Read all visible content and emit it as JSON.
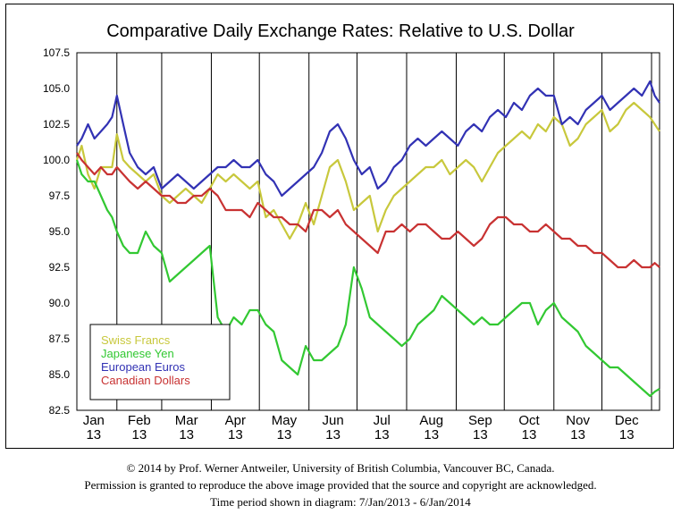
{
  "chart_data": {
    "type": "line",
    "title": "Comparative Daily Exchange Rates: Relative to U.S. Dollar",
    "xlabel": "",
    "ylabel": "",
    "ylim": [
      82.5,
      107.5
    ],
    "yticks": [
      "107.5",
      "105.0",
      "102.5",
      "100.0",
      "97.5",
      "95.0",
      "92.5",
      "90.0",
      "87.5",
      "85.0",
      "82.5"
    ],
    "months": [
      {
        "month": "Jan",
        "year": "13"
      },
      {
        "month": "Feb",
        "year": "13"
      },
      {
        "month": "Mar",
        "year": "13"
      },
      {
        "month": "Apr",
        "year": "13"
      },
      {
        "month": "May",
        "year": "13"
      },
      {
        "month": "Jun",
        "year": "13"
      },
      {
        "month": "Jul",
        "year": "13"
      },
      {
        "month": "Aug",
        "year": "13"
      },
      {
        "month": "Sep",
        "year": "13"
      },
      {
        "month": "Oct",
        "year": "13"
      },
      {
        "month": "Nov",
        "year": "13"
      },
      {
        "month": "Dec",
        "year": "13"
      }
    ],
    "x_unit": "day of year 2013",
    "xlim": [
      7,
      371
    ],
    "month_boundaries": [
      32,
      60,
      91,
      121,
      152,
      182,
      213,
      244,
      274,
      305,
      335,
      366
    ],
    "grid": true,
    "legend_position": "bottom-left",
    "series": [
      {
        "name": "Swiss Francs",
        "color": "#c8c83c",
        "x": [
          7,
          10,
          14,
          18,
          22,
          26,
          29,
          32,
          36,
          40,
          45,
          50,
          55,
          60,
          65,
          70,
          75,
          80,
          85,
          90,
          95,
          100,
          105,
          110,
          115,
          120,
          125,
          130,
          135,
          140,
          145,
          150,
          155,
          160,
          165,
          170,
          175,
          180,
          185,
          190,
          195,
          200,
          205,
          210,
          215,
          220,
          225,
          230,
          235,
          240,
          245,
          250,
          255,
          260,
          265,
          270,
          275,
          280,
          285,
          290,
          295,
          300,
          305,
          310,
          315,
          320,
          325,
          330,
          335,
          340,
          345,
          350,
          355,
          360,
          365,
          368,
          371
        ],
        "values": [
          100.0,
          101.0,
          99.0,
          98.0,
          99.5,
          99.5,
          99.5,
          101.8,
          100.0,
          99.5,
          99.0,
          98.5,
          99.0,
          97.5,
          97.0,
          97.5,
          98.0,
          97.5,
          97.0,
          98.0,
          99.0,
          98.5,
          99.0,
          98.5,
          98.0,
          98.5,
          96.0,
          96.5,
          95.5,
          94.5,
          95.5,
          97.0,
          95.5,
          97.5,
          99.5,
          100.0,
          98.5,
          96.5,
          97.0,
          97.5,
          95.0,
          96.5,
          97.5,
          98.0,
          98.5,
          99.0,
          99.5,
          99.5,
          100.0,
          99.0,
          99.5,
          100.0,
          99.5,
          98.5,
          99.5,
          100.5,
          101.0,
          101.5,
          102.0,
          101.5,
          102.5,
          102.0,
          103.0,
          102.5,
          101.0,
          101.5,
          102.5,
          103.0,
          103.5,
          102.0,
          102.5,
          103.5,
          104.0,
          103.5,
          103.0,
          102.5,
          102.0
        ]
      },
      {
        "name": "Japanese Yen",
        "color": "#32c832",
        "x": [
          7,
          10,
          14,
          18,
          22,
          26,
          29,
          32,
          36,
          40,
          45,
          50,
          55,
          60,
          65,
          70,
          75,
          80,
          85,
          90,
          95,
          100,
          105,
          110,
          115,
          120,
          125,
          130,
          135,
          140,
          145,
          150,
          155,
          160,
          165,
          170,
          175,
          180,
          185,
          190,
          195,
          200,
          205,
          210,
          215,
          220,
          225,
          230,
          235,
          240,
          245,
          250,
          255,
          260,
          265,
          270,
          275,
          280,
          285,
          290,
          295,
          300,
          305,
          310,
          315,
          320,
          325,
          330,
          335,
          340,
          345,
          350,
          355,
          360,
          365,
          368,
          371
        ],
        "values": [
          100.0,
          99.0,
          98.5,
          98.5,
          97.5,
          96.5,
          96.0,
          95.0,
          94.0,
          93.5,
          93.5,
          95.0,
          94.0,
          93.5,
          91.5,
          92.0,
          92.5,
          93.0,
          93.5,
          94.0,
          89.0,
          88.0,
          89.0,
          88.5,
          89.5,
          89.5,
          88.5,
          88.0,
          86.0,
          85.5,
          85.0,
          87.0,
          86.0,
          86.0,
          86.5,
          87.0,
          88.5,
          92.5,
          91.0,
          89.0,
          88.5,
          88.0,
          87.5,
          87.0,
          87.5,
          88.5,
          89.0,
          89.5,
          90.5,
          90.0,
          89.5,
          89.0,
          88.5,
          89.0,
          88.5,
          88.5,
          89.0,
          89.5,
          90.0,
          90.0,
          88.5,
          89.5,
          90.0,
          89.0,
          88.5,
          88.0,
          87.0,
          86.5,
          86.0,
          85.5,
          85.5,
          85.0,
          84.5,
          84.0,
          83.5,
          83.8,
          84.0
        ]
      },
      {
        "name": "European Euros",
        "color": "#3232b4",
        "x": [
          7,
          10,
          14,
          18,
          22,
          26,
          29,
          32,
          36,
          40,
          45,
          50,
          55,
          60,
          65,
          70,
          75,
          80,
          85,
          90,
          95,
          100,
          105,
          110,
          115,
          120,
          125,
          130,
          135,
          140,
          145,
          150,
          155,
          160,
          165,
          170,
          175,
          180,
          185,
          190,
          195,
          200,
          205,
          210,
          215,
          220,
          225,
          230,
          235,
          240,
          245,
          250,
          255,
          260,
          265,
          270,
          275,
          280,
          285,
          290,
          295,
          300,
          305,
          310,
          315,
          320,
          325,
          330,
          335,
          340,
          345,
          350,
          355,
          360,
          365,
          368,
          371
        ],
        "values": [
          101.0,
          101.5,
          102.5,
          101.5,
          102.0,
          102.5,
          103.0,
          104.5,
          102.5,
          100.5,
          99.5,
          99.0,
          99.5,
          98.0,
          98.5,
          99.0,
          98.5,
          98.0,
          98.5,
          99.0,
          99.5,
          99.5,
          100.0,
          99.5,
          99.5,
          100.0,
          99.0,
          98.5,
          97.5,
          98.0,
          98.5,
          99.0,
          99.5,
          100.5,
          102.0,
          102.5,
          101.5,
          100.0,
          99.0,
          99.5,
          98.0,
          98.5,
          99.5,
          100.0,
          101.0,
          101.5,
          101.0,
          101.5,
          102.0,
          101.5,
          101.0,
          102.0,
          102.5,
          102.0,
          103.0,
          103.5,
          103.0,
          104.0,
          103.5,
          104.5,
          105.0,
          104.5,
          104.5,
          102.5,
          103.0,
          102.5,
          103.5,
          104.0,
          104.5,
          103.5,
          104.0,
          104.5,
          105.0,
          104.5,
          105.5,
          104.5,
          104.0
        ]
      },
      {
        "name": "Canadian Dollars",
        "color": "#c83232",
        "x": [
          7,
          10,
          14,
          18,
          22,
          26,
          29,
          32,
          36,
          40,
          45,
          50,
          55,
          60,
          65,
          70,
          75,
          80,
          85,
          90,
          95,
          100,
          105,
          110,
          115,
          120,
          125,
          130,
          135,
          140,
          145,
          150,
          155,
          160,
          165,
          170,
          175,
          180,
          185,
          190,
          195,
          200,
          205,
          210,
          215,
          220,
          225,
          230,
          235,
          240,
          245,
          250,
          255,
          260,
          265,
          270,
          275,
          280,
          285,
          290,
          295,
          300,
          305,
          310,
          315,
          320,
          325,
          330,
          335,
          340,
          345,
          350,
          355,
          360,
          365,
          368,
          371
        ],
        "values": [
          100.5,
          100.0,
          99.5,
          99.0,
          99.5,
          99.0,
          99.0,
          99.5,
          99.0,
          98.5,
          98.0,
          98.5,
          98.0,
          97.5,
          97.5,
          97.0,
          97.0,
          97.5,
          97.5,
          98.0,
          97.5,
          96.5,
          96.5,
          96.5,
          96.0,
          97.0,
          96.5,
          96.0,
          96.0,
          95.5,
          95.5,
          95.0,
          96.5,
          96.5,
          96.0,
          96.5,
          95.5,
          95.0,
          94.5,
          94.0,
          93.5,
          95.0,
          95.0,
          95.5,
          95.0,
          95.5,
          95.5,
          95.0,
          94.5,
          94.5,
          95.0,
          94.5,
          94.0,
          94.5,
          95.5,
          96.0,
          96.0,
          95.5,
          95.5,
          95.0,
          95.0,
          95.5,
          95.0,
          94.5,
          94.5,
          94.0,
          94.0,
          93.5,
          93.5,
          93.0,
          92.5,
          92.5,
          93.0,
          92.5,
          92.5,
          92.8,
          92.5
        ]
      }
    ]
  },
  "footer": {
    "copyright": "© 2014 by Prof. Werner Antweiler, University of British Columbia, Vancouver BC, Canada.",
    "permission": "Permission is granted to reproduce the above image provided that the source and copyright are acknowledged.",
    "period": "Time period shown in diagram: 7/Jan/2013 - 6/Jan/2014"
  }
}
